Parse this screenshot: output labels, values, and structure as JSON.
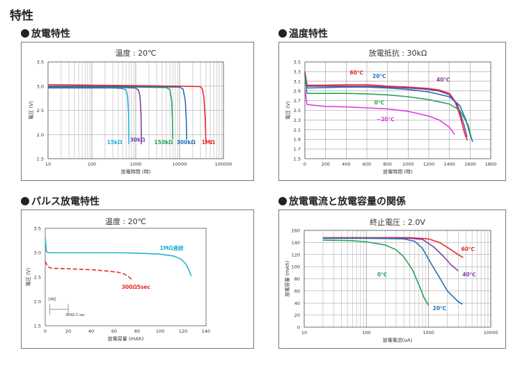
{
  "page": {
    "title": "特性"
  },
  "sections": {
    "discharge": "放電特性",
    "temperature": "温度特性",
    "pulse": "パルス放電特性",
    "current_capacity": "放電電流と放電容量の関係"
  },
  "colors": {
    "red": "#e8272a",
    "purple": "#7b3fa1",
    "green": "#22a35b",
    "blue": "#2470b4",
    "cyan": "#25b0d6",
    "magenta": "#e23be3",
    "grid": "#9a9a9a"
  },
  "chart_data": [
    {
      "id": "discharge",
      "type": "line",
      "title": "温度 : 20℃",
      "xlabel": "放電時間 (時)",
      "ylabel": "電圧 (V)",
      "x_scale": "log",
      "xlim": [
        10,
        100000
      ],
      "ylim": [
        1.5,
        3.5
      ],
      "xticks": [
        "10",
        "100",
        "1000",
        "10000",
        "100000"
      ],
      "yticks": [
        "1.5",
        "2.0",
        "2.5",
        "3.0",
        "3.5"
      ],
      "grid": true,
      "series": [
        {
          "name": "15kΩ",
          "color": "cyan",
          "points": [
            [
              10,
              2.96
            ],
            [
              100,
              2.96
            ],
            [
              300,
              2.96
            ],
            [
              500,
              2.95
            ],
            [
              600,
              2.92
            ],
            [
              650,
              2.8
            ],
            [
              690,
              2.4
            ],
            [
              700,
              1.8
            ]
          ]
        },
        {
          "name": "30kΩ",
          "color": "purple",
          "points": [
            [
              10,
              2.97
            ],
            [
              100,
              2.97
            ],
            [
              500,
              2.97
            ],
            [
              1000,
              2.96
            ],
            [
              1150,
              2.92
            ],
            [
              1250,
              2.8
            ],
            [
              1320,
              2.4
            ],
            [
              1350,
              1.8
            ]
          ]
        },
        {
          "name": "150kΩ",
          "color": "green",
          "points": [
            [
              10,
              2.99
            ],
            [
              100,
              2.99
            ],
            [
              1000,
              2.98
            ],
            [
              5000,
              2.97
            ],
            [
              6000,
              2.93
            ],
            [
              6600,
              2.7
            ],
            [
              6900,
              2.3
            ],
            [
              7000,
              1.9
            ]
          ]
        },
        {
          "name": "300kΩ",
          "color": "blue",
          "points": [
            [
              10,
              3.0
            ],
            [
              100,
              3.0
            ],
            [
              1000,
              2.99
            ],
            [
              10000,
              2.98
            ],
            [
              12000,
              2.94
            ],
            [
              13500,
              2.7
            ],
            [
              14200,
              2.3
            ],
            [
              14500,
              1.9
            ]
          ]
        },
        {
          "name": "1MΩ",
          "color": "red",
          "points": [
            [
              10,
              3.03
            ],
            [
              100,
              3.02
            ],
            [
              1000,
              3.01
            ],
            [
              10000,
              3.0
            ],
            [
              30000,
              2.99
            ],
            [
              33000,
              2.94
            ],
            [
              36000,
              2.75
            ],
            [
              38500,
              2.3
            ],
            [
              40000,
              1.8
            ]
          ]
        }
      ]
    },
    {
      "id": "temperature",
      "type": "line",
      "title": "放電抵抗 : 30kΩ",
      "xlabel": "放電時間 (時)",
      "ylabel": "電圧 (V)",
      "xlim": [
        0,
        1800
      ],
      "ylim": [
        1.5,
        3.5
      ],
      "xticks": [
        "0",
        "200",
        "400",
        "600",
        "800",
        "1000",
        "1200",
        "1400",
        "1600",
        "1800"
      ],
      "yticks": [
        "1.5",
        "1.7",
        "1.9",
        "2.1",
        "2.3",
        "2.5",
        "2.7",
        "2.9",
        "3.1",
        "3.3",
        "3.5"
      ],
      "grid": true,
      "series": [
        {
          "name": "60℃",
          "color": "red",
          "points": [
            [
              0,
              3.3
            ],
            [
              20,
              3.02
            ],
            [
              200,
              3.02
            ],
            [
              400,
              3.03
            ],
            [
              600,
              3.03
            ],
            [
              800,
              3.0
            ],
            [
              1000,
              2.98
            ],
            [
              1200,
              2.95
            ],
            [
              1300,
              2.92
            ],
            [
              1400,
              2.85
            ],
            [
              1450,
              2.7
            ],
            [
              1500,
              2.4
            ],
            [
              1550,
              2.0
            ],
            [
              1575,
              1.88
            ]
          ]
        },
        {
          "name": "20℃",
          "color": "blue",
          "points": [
            [
              0,
              3.25
            ],
            [
              20,
              2.96
            ],
            [
              200,
              2.97
            ],
            [
              400,
              2.98
            ],
            [
              600,
              2.98
            ],
            [
              800,
              2.96
            ],
            [
              1000,
              2.93
            ],
            [
              1200,
              2.88
            ],
            [
              1400,
              2.78
            ],
            [
              1500,
              2.6
            ],
            [
              1560,
              2.3
            ],
            [
              1600,
              2.0
            ],
            [
              1625,
              1.85
            ]
          ]
        },
        {
          "name": "40℃",
          "color": "purple",
          "points": [
            [
              0,
              3.28
            ],
            [
              20,
              3.0
            ],
            [
              200,
              3.0
            ],
            [
              400,
              3.0
            ],
            [
              600,
              3.0
            ],
            [
              800,
              2.98
            ],
            [
              1000,
              2.96
            ],
            [
              1200,
              2.93
            ],
            [
              1300,
              2.9
            ],
            [
              1400,
              2.82
            ],
            [
              1480,
              2.6
            ],
            [
              1540,
              2.2
            ],
            [
              1570,
              1.95
            ]
          ]
        },
        {
          "name": "0℃",
          "color": "green",
          "points": [
            [
              0,
              3.2
            ],
            [
              20,
              2.85
            ],
            [
              200,
              2.85
            ],
            [
              400,
              2.85
            ],
            [
              600,
              2.84
            ],
            [
              800,
              2.82
            ],
            [
              1000,
              2.78
            ],
            [
              1200,
              2.72
            ],
            [
              1400,
              2.63
            ],
            [
              1500,
              2.5
            ],
            [
              1580,
              2.2
            ],
            [
              1610,
              1.95
            ]
          ]
        },
        {
          "name": "−20℃",
          "color": "magenta",
          "points": [
            [
              0,
              2.95
            ],
            [
              20,
              2.62
            ],
            [
              200,
              2.58
            ],
            [
              400,
              2.57
            ],
            [
              600,
              2.55
            ],
            [
              800,
              2.53
            ],
            [
              1000,
              2.48
            ],
            [
              1200,
              2.38
            ],
            [
              1300,
              2.3
            ],
            [
              1400,
              2.15
            ],
            [
              1450,
              2.0
            ]
          ]
        }
      ]
    },
    {
      "id": "pulse",
      "type": "line",
      "title": "温度 : 20℃",
      "xlabel": "放電容量 (mAh)",
      "ylabel": "電圧 (V)",
      "xlim": [
        0,
        140
      ],
      "ylim": [
        1.5,
        3.5
      ],
      "xticks": [
        "0",
        "20",
        "40",
        "60",
        "80",
        "100",
        "120",
        "140"
      ],
      "yticks": [
        "1.5",
        "2.0",
        "2.5",
        "3.0",
        "3.5"
      ],
      "grid": false,
      "inset": {
        "top_label": "1MΩ",
        "bottom_label": "300Ω 5 sec"
      },
      "series": [
        {
          "name": "1MΩ連続",
          "color": "cyan",
          "dashed": false,
          "points": [
            [
              0,
              3.3
            ],
            [
              1,
              3.02
            ],
            [
              3,
              3.0
            ],
            [
              20,
              3.0
            ],
            [
              40,
              3.0
            ],
            [
              60,
              3.0
            ],
            [
              80,
              2.99
            ],
            [
              100,
              2.97
            ],
            [
              112,
              2.93
            ],
            [
              118,
              2.87
            ],
            [
              122,
              2.78
            ],
            [
              125,
              2.65
            ],
            [
              127,
              2.52
            ]
          ]
        },
        {
          "name": "300Ω5sec",
          "color": "red",
          "dashed": true,
          "points": [
            [
              0,
              2.82
            ],
            [
              2,
              2.72
            ],
            [
              5,
              2.68
            ],
            [
              20,
              2.67
            ],
            [
              40,
              2.65
            ],
            [
              55,
              2.62
            ],
            [
              63,
              2.6
            ],
            [
              68,
              2.57
            ],
            [
              72,
              2.52
            ],
            [
              75,
              2.45
            ]
          ]
        }
      ]
    },
    {
      "id": "current_capacity",
      "type": "line",
      "title": "終止電圧 : 2.0V",
      "xlabel": "放電電流(uA)",
      "ylabel": "放電容量 (mAh)",
      "x_scale": "log",
      "xlim": [
        10,
        10000
      ],
      "ylim": [
        0,
        160
      ],
      "xticks": [
        "10",
        "100",
        "1000",
        "10000"
      ],
      "yticks": [
        "0",
        "20",
        "40",
        "60",
        "80",
        "100",
        "120",
        "140",
        "160"
      ],
      "grid": true,
      "series": [
        {
          "name": "60℃",
          "color": "red",
          "points": [
            [
              20,
              148
            ],
            [
              100,
              148
            ],
            [
              500,
              148
            ],
            [
              1000,
              146
            ],
            [
              1500,
              140
            ],
            [
              2000,
              132
            ],
            [
              3000,
              120
            ],
            [
              3600,
              115
            ]
          ]
        },
        {
          "name": "40℃",
          "color": "purple",
          "points": [
            [
              20,
              147
            ],
            [
              100,
              147
            ],
            [
              500,
              147
            ],
            [
              800,
              145
            ],
            [
              1200,
              133
            ],
            [
              1700,
              118
            ],
            [
              2300,
              103
            ],
            [
              3000,
              93
            ]
          ]
        },
        {
          "name": "20℃",
          "color": "blue",
          "points": [
            [
              20,
              147
            ],
            [
              100,
              147
            ],
            [
              400,
              146
            ],
            [
              600,
              142
            ],
            [
              800,
              130
            ],
            [
              1100,
              105
            ],
            [
              1500,
              82
            ],
            [
              2000,
              60
            ],
            [
              3000,
              42
            ],
            [
              3500,
              38
            ]
          ]
        },
        {
          "name": "0℃",
          "color": "green",
          "points": [
            [
              20,
              144
            ],
            [
              60,
              143
            ],
            [
              100,
              141
            ],
            [
              200,
              136
            ],
            [
              300,
              128
            ],
            [
              400,
              116
            ],
            [
              550,
              95
            ],
            [
              700,
              70
            ],
            [
              850,
              48
            ],
            [
              1000,
              36
            ]
          ]
        }
      ]
    }
  ]
}
